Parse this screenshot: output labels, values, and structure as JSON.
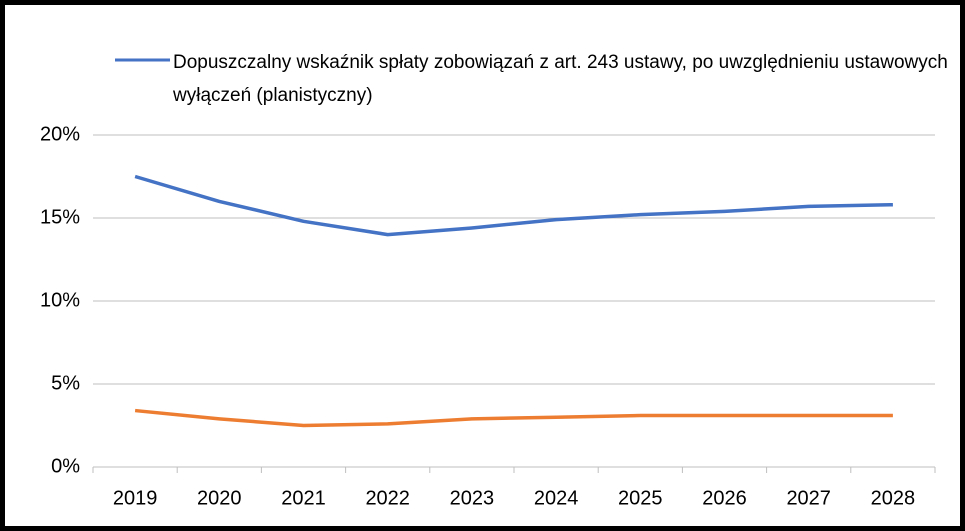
{
  "chart_data": {
    "type": "line",
    "categories": [
      "2019",
      "2020",
      "2021",
      "2022",
      "2023",
      "2024",
      "2025",
      "2026",
      "2027",
      "2028"
    ],
    "series": [
      {
        "name": "Dopuszczalny wskaźnik spłaty zobowiązań z art. 243 ustawy, po uwzględnieniu ustawowych wyłączeń (planistyczny)",
        "color": "#4472c4",
        "values": [
          17.5,
          16.0,
          14.8,
          14.0,
          14.4,
          14.9,
          15.2,
          15.4,
          15.7,
          15.8
        ]
      },
      {
        "color": "#ed7d31",
        "values": [
          3.4,
          2.9,
          2.5,
          2.6,
          2.9,
          3.0,
          3.1,
          3.1,
          3.1,
          3.1
        ]
      }
    ],
    "ylim": [
      0,
      20
    ],
    "yticks": [
      {
        "value": 0,
        "label": "0%"
      },
      {
        "value": 5,
        "label": "5%"
      },
      {
        "value": 10,
        "label": "10%"
      },
      {
        "value": 15,
        "label": "15%"
      },
      {
        "value": 20,
        "label": "20%"
      }
    ],
    "grid": true
  }
}
